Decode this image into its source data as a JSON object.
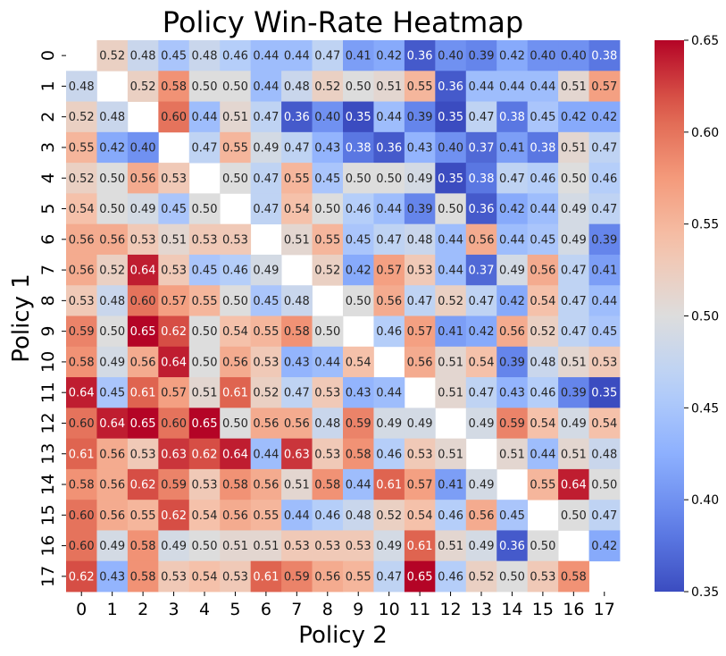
{
  "chart_data": {
    "type": "heatmap",
    "title": "Policy Win-Rate Heatmap",
    "xlabel": "Policy 2",
    "ylabel": "Policy 1",
    "x_ticks": [
      "0",
      "1",
      "2",
      "3",
      "4",
      "5",
      "6",
      "7",
      "8",
      "9",
      "10",
      "11",
      "12",
      "13",
      "14",
      "15",
      "16",
      "17"
    ],
    "y_ticks": [
      "0",
      "1",
      "2",
      "3",
      "4",
      "5",
      "6",
      "7",
      "8",
      "9",
      "10",
      "11",
      "12",
      "13",
      "14",
      "15",
      "16",
      "17"
    ],
    "colormap": "coolwarm",
    "vmin": 0.35,
    "vmax": 0.65,
    "colorbar_ticks": [
      "0.35",
      "0.40",
      "0.45",
      "0.50",
      "0.55",
      "0.60",
      "0.65"
    ],
    "values": [
      [
        null,
        0.52,
        0.48,
        0.45,
        0.48,
        0.46,
        0.44,
        0.44,
        0.47,
        0.41,
        0.42,
        0.36,
        0.4,
        0.39,
        0.42,
        0.4,
        0.4,
        0.38
      ],
      [
        0.48,
        null,
        0.52,
        0.58,
        0.5,
        0.5,
        0.44,
        0.48,
        0.52,
        0.5,
        0.51,
        0.55,
        0.36,
        0.44,
        0.44,
        0.44,
        0.51,
        0.57
      ],
      [
        0.52,
        0.48,
        null,
        0.6,
        0.44,
        0.51,
        0.47,
        0.36,
        0.4,
        0.35,
        0.44,
        0.39,
        0.35,
        0.47,
        0.38,
        0.45,
        0.42,
        0.42
      ],
      [
        0.55,
        0.42,
        0.4,
        null,
        0.47,
        0.55,
        0.49,
        0.47,
        0.43,
        0.38,
        0.36,
        0.43,
        0.4,
        0.37,
        0.41,
        0.38,
        0.51,
        0.47
      ],
      [
        0.52,
        0.5,
        0.56,
        0.53,
        null,
        0.5,
        0.47,
        0.55,
        0.45,
        0.5,
        0.5,
        0.49,
        0.35,
        0.38,
        0.47,
        0.46,
        0.5,
        0.46
      ],
      [
        0.54,
        0.5,
        0.49,
        0.45,
        0.5,
        null,
        0.47,
        0.54,
        0.5,
        0.46,
        0.44,
        0.39,
        0.5,
        0.36,
        0.42,
        0.44,
        0.49,
        0.47
      ],
      [
        0.56,
        0.56,
        0.53,
        0.51,
        0.53,
        0.53,
        null,
        0.51,
        0.55,
        0.45,
        0.47,
        0.48,
        0.44,
        0.56,
        0.44,
        0.45,
        0.49,
        0.39
      ],
      [
        0.56,
        0.52,
        0.64,
        0.53,
        0.45,
        0.46,
        0.49,
        null,
        0.52,
        0.42,
        0.57,
        0.53,
        0.44,
        0.37,
        0.49,
        0.56,
        0.47,
        0.41
      ],
      [
        0.53,
        0.48,
        0.6,
        0.57,
        0.55,
        0.5,
        0.45,
        0.48,
        null,
        0.5,
        0.56,
        0.47,
        0.52,
        0.47,
        0.42,
        0.54,
        0.47,
        0.44
      ],
      [
        0.59,
        0.5,
        0.65,
        0.62,
        0.5,
        0.54,
        0.55,
        0.58,
        0.5,
        null,
        0.46,
        0.57,
        0.41,
        0.42,
        0.56,
        0.52,
        0.47,
        0.45
      ],
      [
        0.58,
        0.49,
        0.56,
        0.64,
        0.5,
        0.56,
        0.53,
        0.43,
        0.44,
        0.54,
        null,
        0.56,
        0.51,
        0.54,
        0.39,
        0.48,
        0.51,
        0.53
      ],
      [
        0.64,
        0.45,
        0.61,
        0.57,
        0.51,
        0.61,
        0.52,
        0.47,
        0.53,
        0.43,
        0.44,
        null,
        0.51,
        0.47,
        0.43,
        0.46,
        0.39,
        0.35
      ],
      [
        0.6,
        0.64,
        0.65,
        0.6,
        0.65,
        0.5,
        0.56,
        0.56,
        0.48,
        0.59,
        0.49,
        0.49,
        null,
        0.49,
        0.59,
        0.54,
        0.49,
        0.54
      ],
      [
        0.61,
        0.56,
        0.53,
        0.63,
        0.62,
        0.64,
        0.44,
        0.63,
        0.53,
        0.58,
        0.46,
        0.53,
        0.51,
        null,
        0.51,
        0.44,
        0.51,
        0.48
      ],
      [
        0.58,
        0.56,
        0.62,
        0.59,
        0.53,
        0.58,
        0.56,
        0.51,
        0.58,
        0.44,
        0.61,
        0.57,
        0.41,
        0.49,
        null,
        0.55,
        0.64,
        0.5
      ],
      [
        0.6,
        0.56,
        0.55,
        0.62,
        0.54,
        0.56,
        0.55,
        0.44,
        0.46,
        0.48,
        0.52,
        0.54,
        0.46,
        0.56,
        0.45,
        null,
        0.5,
        0.47
      ],
      [
        0.6,
        0.49,
        0.58,
        0.49,
        0.5,
        0.51,
        0.51,
        0.53,
        0.53,
        0.53,
        0.49,
        0.61,
        0.51,
        0.49,
        0.36,
        0.5,
        null,
        0.42
      ],
      [
        0.62,
        0.43,
        0.58,
        0.53,
        0.54,
        0.53,
        0.61,
        0.59,
        0.56,
        0.55,
        0.47,
        0.65,
        0.46,
        0.52,
        0.5,
        0.53,
        0.58,
        null
      ]
    ]
  }
}
